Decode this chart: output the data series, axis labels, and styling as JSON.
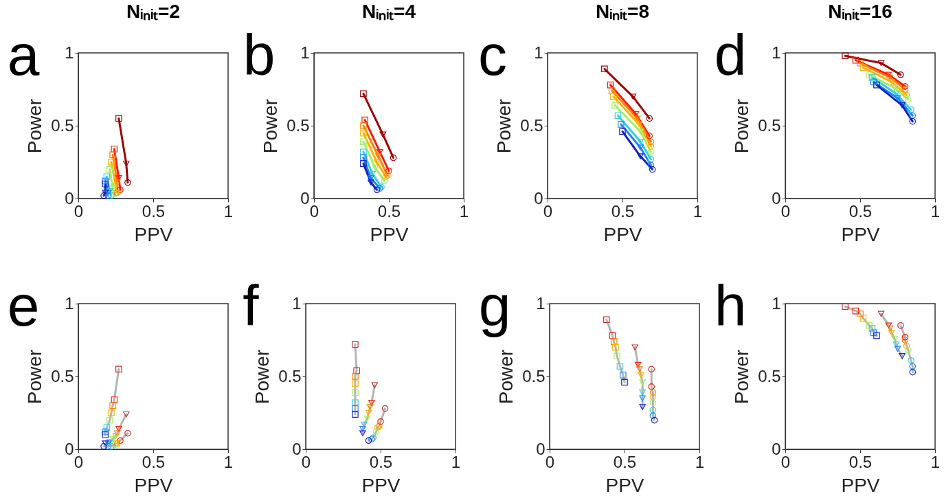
{
  "chart_data": [
    {
      "type": "line",
      "title": "Nᵢₙᵢₜ=2",
      "xlabel": "PPV",
      "ylabel": "Power",
      "xlim": [
        0,
        1
      ],
      "ylim": [
        0,
        1
      ],
      "xticks": [
        0,
        0.5,
        1
      ],
      "yticks": [
        0,
        0.5,
        1
      ],
      "grid": false,
      "annotations": [
        "a"
      ],
      "series": [
        {
          "color": "#a00000",
          "marker": "none",
          "x": [
            0.27,
            0.32,
            0.33
          ],
          "values": [
            0.55,
            0.24,
            0.11
          ]
        },
        {
          "color": "#ff1a00",
          "marker": "none",
          "x": [
            0.24,
            0.27,
            0.28
          ],
          "values": [
            0.34,
            0.14,
            0.06
          ]
        },
        {
          "color": "#ff8000",
          "marker": "none",
          "x": [
            0.23,
            0.26,
            0.26
          ],
          "values": [
            0.3,
            0.11,
            0.04
          ]
        },
        {
          "color": "#ffb000",
          "marker": "none",
          "x": [
            0.22,
            0.25,
            0.25
          ],
          "values": [
            0.25,
            0.09,
            0.04
          ]
        },
        {
          "color": "#a0f060",
          "marker": "none",
          "x": [
            0.21,
            0.23,
            0.24
          ],
          "values": [
            0.2,
            0.07,
            0.03
          ]
        },
        {
          "color": "#30d0e0",
          "marker": "none",
          "x": [
            0.19,
            0.21,
            0.22
          ],
          "values": [
            0.15,
            0.05,
            0.02
          ]
        },
        {
          "color": "#2080ff",
          "marker": "none",
          "x": [
            0.18,
            0.2,
            0.2
          ],
          "values": [
            0.12,
            0.04,
            0.02
          ]
        },
        {
          "color": "#1020c0",
          "marker": "none",
          "x": [
            0.18,
            0.18,
            0.17
          ],
          "values": [
            0.1,
            0.04,
            0.02
          ]
        },
        {
          "type": "scatter",
          "marker": "square",
          "colors": [
            "#a00000",
            "#ff1a00",
            "#ff8000",
            "#ffb000",
            "#a0f060",
            "#30d0e0",
            "#2080ff",
            "#1020c0"
          ],
          "x": [
            0.27,
            0.24,
            0.23,
            0.22,
            0.21,
            0.19,
            0.18,
            0.18
          ],
          "values": [
            0.55,
            0.34,
            0.3,
            0.25,
            0.2,
            0.15,
            0.12,
            0.1
          ]
        },
        {
          "type": "scatter",
          "marker": "triangle",
          "colors": [
            "#a00000",
            "#ff1a00",
            "#ff8000",
            "#ffb000",
            "#a0f060",
            "#30d0e0",
            "#2080ff",
            "#1020c0"
          ],
          "x": [
            0.32,
            0.27,
            0.26,
            0.25,
            0.23,
            0.21,
            0.2,
            0.18
          ],
          "values": [
            0.24,
            0.14,
            0.11,
            0.09,
            0.07,
            0.05,
            0.04,
            0.04
          ]
        },
        {
          "type": "scatter",
          "marker": "circle",
          "colors": [
            "#a00000",
            "#ff1a00",
            "#ff8000",
            "#ffb000",
            "#a0f060",
            "#30d0e0",
            "#2080ff",
            "#1020c0"
          ],
          "x": [
            0.33,
            0.28,
            0.26,
            0.25,
            0.24,
            0.22,
            0.2,
            0.17
          ],
          "values": [
            0.11,
            0.06,
            0.04,
            0.04,
            0.03,
            0.02,
            0.02,
            0.02
          ]
        }
      ]
    },
    {
      "type": "line",
      "title": "Nᵢₙᵢₜ=4",
      "xlabel": "PPV",
      "ylabel": "Power",
      "xlim": [
        0,
        1
      ],
      "ylim": [
        0,
        1
      ],
      "xticks": [
        0,
        0.5,
        1
      ],
      "yticks": [
        0,
        0.5,
        1
      ],
      "grid": false,
      "annotations": [
        "b"
      ],
      "series": [
        {
          "color": "#a00000",
          "marker": "none",
          "x": [
            0.33,
            0.46,
            0.53
          ],
          "values": [
            0.72,
            0.44,
            0.28
          ]
        },
        {
          "color": "#ff1a00",
          "marker": "none",
          "x": [
            0.34,
            0.44,
            0.5
          ],
          "values": [
            0.54,
            0.32,
            0.19
          ]
        },
        {
          "color": "#ff8000",
          "marker": "none",
          "x": [
            0.33,
            0.43,
            0.49
          ],
          "values": [
            0.5,
            0.29,
            0.16
          ]
        },
        {
          "color": "#ffb000",
          "marker": "none",
          "x": [
            0.33,
            0.42,
            0.48
          ],
          "values": [
            0.45,
            0.25,
            0.15
          ]
        },
        {
          "color": "#a0f060",
          "marker": "none",
          "x": [
            0.33,
            0.41,
            0.47
          ],
          "values": [
            0.39,
            0.21,
            0.12
          ]
        },
        {
          "color": "#30d0e0",
          "marker": "none",
          "x": [
            0.33,
            0.39,
            0.45
          ],
          "values": [
            0.32,
            0.17,
            0.08
          ]
        },
        {
          "color": "#2080ff",
          "marker": "none",
          "x": [
            0.33,
            0.38,
            0.44
          ],
          "values": [
            0.28,
            0.14,
            0.07
          ]
        },
        {
          "color": "#1020c0",
          "marker": "none",
          "x": [
            0.33,
            0.38,
            0.42
          ],
          "values": [
            0.24,
            0.11,
            0.06
          ]
        },
        {
          "type": "scatter",
          "marker": "square",
          "colors": [
            "#a00000",
            "#ff1a00",
            "#ff8000",
            "#ffb000",
            "#a0f060",
            "#30d0e0",
            "#2080ff",
            "#1020c0"
          ],
          "x": [
            0.33,
            0.34,
            0.33,
            0.33,
            0.33,
            0.33,
            0.33,
            0.33
          ],
          "values": [
            0.72,
            0.54,
            0.5,
            0.45,
            0.39,
            0.32,
            0.28,
            0.24
          ]
        },
        {
          "type": "scatter",
          "marker": "triangle",
          "colors": [
            "#a00000",
            "#ff1a00",
            "#ff8000",
            "#ffb000",
            "#a0f060",
            "#30d0e0",
            "#2080ff",
            "#1020c0"
          ],
          "x": [
            0.46,
            0.44,
            0.43,
            0.42,
            0.41,
            0.39,
            0.38,
            0.38
          ],
          "values": [
            0.44,
            0.32,
            0.29,
            0.25,
            0.21,
            0.17,
            0.14,
            0.11
          ]
        },
        {
          "type": "scatter",
          "marker": "circle",
          "colors": [
            "#a00000",
            "#ff1a00",
            "#ff8000",
            "#ffb000",
            "#a0f060",
            "#30d0e0",
            "#2080ff",
            "#1020c0"
          ],
          "x": [
            0.53,
            0.5,
            0.49,
            0.48,
            0.47,
            0.45,
            0.44,
            0.42
          ],
          "values": [
            0.28,
            0.19,
            0.16,
            0.15,
            0.12,
            0.08,
            0.07,
            0.06
          ]
        }
      ]
    },
    {
      "type": "line",
      "title": "Nᵢₙᵢₜ=8",
      "xlabel": "PPV",
      "ylabel": "Power",
      "xlim": [
        0,
        1
      ],
      "ylim": [
        0,
        1
      ],
      "xticks": [
        0,
        0.5,
        1
      ],
      "yticks": [
        0,
        0.5,
        1
      ],
      "grid": false,
      "annotations": [
        "c"
      ],
      "series": [
        {
          "color": "#a00000",
          "marker": "none",
          "x": [
            0.38,
            0.57,
            0.68
          ],
          "values": [
            0.89,
            0.7,
            0.55
          ]
        },
        {
          "color": "#ff1a00",
          "marker": "none",
          "x": [
            0.42,
            0.59,
            0.68
          ],
          "values": [
            0.78,
            0.58,
            0.43
          ]
        },
        {
          "color": "#ff8000",
          "marker": "none",
          "x": [
            0.43,
            0.6,
            0.69
          ],
          "values": [
            0.74,
            0.55,
            0.39
          ]
        },
        {
          "color": "#ffb000",
          "marker": "none",
          "x": [
            0.44,
            0.61,
            0.69
          ],
          "values": [
            0.7,
            0.51,
            0.36
          ]
        },
        {
          "color": "#a0f060",
          "marker": "none",
          "x": [
            0.45,
            0.62,
            0.69
          ],
          "values": [
            0.64,
            0.46,
            0.32
          ]
        },
        {
          "color": "#30d0e0",
          "marker": "none",
          "x": [
            0.47,
            0.62,
            0.69
          ],
          "values": [
            0.57,
            0.39,
            0.27
          ]
        },
        {
          "color": "#2080ff",
          "marker": "none",
          "x": [
            0.49,
            0.62,
            0.69
          ],
          "values": [
            0.51,
            0.35,
            0.23
          ]
        },
        {
          "color": "#1020c0",
          "marker": "none",
          "x": [
            0.5,
            0.62,
            0.7
          ],
          "values": [
            0.46,
            0.29,
            0.2
          ]
        },
        {
          "type": "scatter",
          "marker": "square",
          "colors": [
            "#a00000",
            "#ff1a00",
            "#ff8000",
            "#ffb000",
            "#a0f060",
            "#30d0e0",
            "#2080ff",
            "#1020c0"
          ],
          "x": [
            0.38,
            0.42,
            0.43,
            0.44,
            0.45,
            0.47,
            0.49,
            0.5
          ],
          "values": [
            0.89,
            0.78,
            0.74,
            0.7,
            0.64,
            0.57,
            0.51,
            0.46
          ]
        },
        {
          "type": "scatter",
          "marker": "triangle",
          "colors": [
            "#a00000",
            "#ff1a00",
            "#ff8000",
            "#ffb000",
            "#a0f060",
            "#30d0e0",
            "#2080ff",
            "#1020c0"
          ],
          "x": [
            0.57,
            0.59,
            0.6,
            0.61,
            0.62,
            0.62,
            0.62,
            0.62
          ],
          "values": [
            0.7,
            0.58,
            0.55,
            0.51,
            0.46,
            0.39,
            0.35,
            0.29
          ]
        },
        {
          "type": "scatter",
          "marker": "circle",
          "colors": [
            "#a00000",
            "#ff1a00",
            "#ff8000",
            "#ffb000",
            "#a0f060",
            "#30d0e0",
            "#2080ff",
            "#1020c0"
          ],
          "x": [
            0.68,
            0.68,
            0.69,
            0.69,
            0.69,
            0.69,
            0.69,
            0.7
          ],
          "values": [
            0.55,
            0.43,
            0.39,
            0.36,
            0.32,
            0.27,
            0.23,
            0.2
          ]
        }
      ]
    },
    {
      "type": "line",
      "title": "Nᵢₙᵢₜ=16",
      "xlabel": "PPV",
      "ylabel": "Power",
      "xlim": [
        0,
        1
      ],
      "ylim": [
        0,
        1
      ],
      "xticks": [
        0,
        0.5,
        1
      ],
      "yticks": [
        0,
        0.5,
        1
      ],
      "grid": false,
      "annotations": [
        "d"
      ],
      "series": [
        {
          "color": "#a00000",
          "marker": "none",
          "x": [
            0.4,
            0.64,
            0.77
          ],
          "values": [
            0.98,
            0.93,
            0.85
          ]
        },
        {
          "color": "#ff1a00",
          "marker": "none",
          "x": [
            0.47,
            0.69,
            0.8
          ],
          "values": [
            0.95,
            0.85,
            0.77
          ]
        },
        {
          "color": "#ff8000",
          "marker": "none",
          "x": [
            0.5,
            0.7,
            0.8
          ],
          "values": [
            0.93,
            0.83,
            0.75
          ]
        },
        {
          "color": "#ffb000",
          "marker": "none",
          "x": [
            0.52,
            0.71,
            0.81
          ],
          "values": [
            0.9,
            0.8,
            0.71
          ]
        },
        {
          "color": "#a0f060",
          "marker": "none",
          "x": [
            0.56,
            0.73,
            0.82
          ],
          "values": [
            0.85,
            0.76,
            0.68
          ]
        },
        {
          "color": "#30d0e0",
          "marker": "none",
          "x": [
            0.58,
            0.74,
            0.84
          ],
          "values": [
            0.83,
            0.72,
            0.61
          ]
        },
        {
          "color": "#2080ff",
          "marker": "none",
          "x": [
            0.59,
            0.75,
            0.85
          ],
          "values": [
            0.8,
            0.69,
            0.57
          ]
        },
        {
          "color": "#1020c0",
          "marker": "none",
          "x": [
            0.61,
            0.78,
            0.85
          ],
          "values": [
            0.78,
            0.64,
            0.53
          ]
        },
        {
          "type": "scatter",
          "marker": "square",
          "colors": [
            "#a00000",
            "#ff1a00",
            "#ff8000",
            "#ffb000",
            "#a0f060",
            "#30d0e0",
            "#2080ff",
            "#1020c0"
          ],
          "x": [
            0.4,
            0.47,
            0.5,
            0.52,
            0.56,
            0.58,
            0.59,
            0.61
          ],
          "values": [
            0.98,
            0.95,
            0.93,
            0.9,
            0.85,
            0.83,
            0.8,
            0.78
          ]
        },
        {
          "type": "scatter",
          "marker": "triangle",
          "colors": [
            "#a00000",
            "#ff1a00",
            "#ff8000",
            "#ffb000",
            "#a0f060",
            "#30d0e0",
            "#2080ff",
            "#1020c0"
          ],
          "x": [
            0.64,
            0.69,
            0.7,
            0.71,
            0.73,
            0.74,
            0.75,
            0.78
          ],
          "values": [
            0.93,
            0.85,
            0.83,
            0.8,
            0.76,
            0.72,
            0.69,
            0.64
          ]
        },
        {
          "type": "scatter",
          "marker": "circle",
          "colors": [
            "#a00000",
            "#ff1a00",
            "#ff8000",
            "#ffb000",
            "#a0f060",
            "#30d0e0",
            "#2080ff",
            "#1020c0"
          ],
          "x": [
            0.77,
            0.8,
            0.8,
            0.81,
            0.82,
            0.84,
            0.85,
            0.85
          ],
          "values": [
            0.85,
            0.77,
            0.75,
            0.71,
            0.68,
            0.61,
            0.57,
            0.53
          ]
        }
      ]
    },
    {
      "type": "line",
      "xlabel": "PPV",
      "ylabel": "Power",
      "xlim": [
        0,
        1
      ],
      "ylim": [
        0,
        1
      ],
      "xticks": [
        0,
        0.5,
        1
      ],
      "yticks": [
        0,
        0.5,
        1
      ],
      "grid": false,
      "annotations": [
        "e"
      ],
      "series": [
        {
          "color": "#b4b4b4",
          "marker": "square",
          "colors": [
            "#c03030",
            "#ff1a00",
            "#ff8000",
            "#ffb000",
            "#a0f060",
            "#30d0e0",
            "#2080ff",
            "#1020c0"
          ],
          "x": [
            0.27,
            0.24,
            0.23,
            0.22,
            0.21,
            0.19,
            0.18,
            0.18
          ],
          "values": [
            0.55,
            0.34,
            0.3,
            0.25,
            0.2,
            0.15,
            0.12,
            0.1
          ]
        },
        {
          "color": "#b4b4b4",
          "marker": "triangle",
          "colors": [
            "#c03030",
            "#ff1a00",
            "#ff8000",
            "#ffb000",
            "#a0f060",
            "#30d0e0",
            "#2080ff",
            "#1020c0"
          ],
          "x": [
            0.32,
            0.27,
            0.26,
            0.25,
            0.23,
            0.21,
            0.2,
            0.18
          ],
          "values": [
            0.24,
            0.14,
            0.11,
            0.09,
            0.07,
            0.05,
            0.04,
            0.04
          ]
        },
        {
          "color": "#b4b4b4",
          "marker": "circle",
          "colors": [
            "#c03030",
            "#ff1a00",
            "#ff8000",
            "#ffb000",
            "#a0f060",
            "#30d0e0",
            "#2080ff",
            "#1020c0"
          ],
          "x": [
            0.33,
            0.28,
            0.26,
            0.25,
            0.24,
            0.22,
            0.2,
            0.17
          ],
          "values": [
            0.11,
            0.06,
            0.04,
            0.04,
            0.03,
            0.02,
            0.02,
            0.02
          ]
        }
      ]
    },
    {
      "type": "line",
      "xlabel": "PPV",
      "ylabel": "Power",
      "xlim": [
        0,
        1
      ],
      "ylim": [
        0,
        1
      ],
      "xticks": [
        0,
        0.5,
        1
      ],
      "yticks": [
        0,
        0.5,
        1
      ],
      "grid": false,
      "annotations": [
        "f"
      ],
      "series": [
        {
          "color": "#b4b4b4",
          "marker": "square",
          "colors": [
            "#c03030",
            "#ff1a00",
            "#ff8000",
            "#ffb000",
            "#a0f060",
            "#30d0e0",
            "#2080ff",
            "#1020c0"
          ],
          "x": [
            0.33,
            0.34,
            0.33,
            0.33,
            0.33,
            0.33,
            0.33,
            0.33
          ],
          "values": [
            0.72,
            0.54,
            0.5,
            0.45,
            0.39,
            0.32,
            0.28,
            0.24
          ]
        },
        {
          "color": "#b4b4b4",
          "marker": "triangle",
          "colors": [
            "#c03030",
            "#ff1a00",
            "#ff8000",
            "#ffb000",
            "#a0f060",
            "#30d0e0",
            "#2080ff",
            "#1020c0"
          ],
          "x": [
            0.46,
            0.44,
            0.43,
            0.42,
            0.41,
            0.39,
            0.38,
            0.38
          ],
          "values": [
            0.44,
            0.32,
            0.29,
            0.25,
            0.21,
            0.17,
            0.14,
            0.11
          ]
        },
        {
          "color": "#b4b4b4",
          "marker": "circle",
          "colors": [
            "#c03030",
            "#ff1a00",
            "#ff8000",
            "#ffb000",
            "#a0f060",
            "#30d0e0",
            "#2080ff",
            "#1020c0"
          ],
          "x": [
            0.53,
            0.5,
            0.49,
            0.48,
            0.47,
            0.45,
            0.44,
            0.42
          ],
          "values": [
            0.28,
            0.19,
            0.16,
            0.15,
            0.12,
            0.08,
            0.07,
            0.06
          ]
        }
      ]
    },
    {
      "type": "line",
      "xlabel": "PPV",
      "ylabel": "Power",
      "xlim": [
        0,
        1
      ],
      "ylim": [
        0,
        1
      ],
      "xticks": [
        0,
        0.5,
        1
      ],
      "yticks": [
        0,
        0.5,
        1
      ],
      "grid": false,
      "annotations": [
        "g"
      ],
      "series": [
        {
          "color": "#b4b4b4",
          "marker": "square",
          "colors": [
            "#c03030",
            "#ff1a00",
            "#ff8000",
            "#ffb000",
            "#a0f060",
            "#30d0e0",
            "#2080ff",
            "#1020c0"
          ],
          "x": [
            0.38,
            0.42,
            0.43,
            0.44,
            0.45,
            0.47,
            0.49,
            0.5
          ],
          "values": [
            0.89,
            0.78,
            0.74,
            0.7,
            0.64,
            0.57,
            0.51,
            0.46
          ]
        },
        {
          "color": "#b4b4b4",
          "marker": "triangle",
          "colors": [
            "#c03030",
            "#ff1a00",
            "#ff8000",
            "#ffb000",
            "#a0f060",
            "#30d0e0",
            "#2080ff",
            "#1020c0"
          ],
          "x": [
            0.57,
            0.59,
            0.6,
            0.61,
            0.62,
            0.62,
            0.62,
            0.62
          ],
          "values": [
            0.7,
            0.58,
            0.55,
            0.51,
            0.46,
            0.39,
            0.35,
            0.29
          ]
        },
        {
          "color": "#b4b4b4",
          "marker": "circle",
          "colors": [
            "#c03030",
            "#ff1a00",
            "#ff8000",
            "#ffb000",
            "#a0f060",
            "#30d0e0",
            "#2080ff",
            "#1020c0"
          ],
          "x": [
            0.68,
            0.68,
            0.69,
            0.69,
            0.69,
            0.69,
            0.69,
            0.7
          ],
          "values": [
            0.55,
            0.43,
            0.39,
            0.36,
            0.32,
            0.27,
            0.23,
            0.2
          ]
        }
      ]
    },
    {
      "type": "line",
      "xlabel": "PPV",
      "ylabel": "Power",
      "xlim": [
        0,
        1
      ],
      "ylim": [
        0,
        1
      ],
      "xticks": [
        0,
        0.5,
        1
      ],
      "yticks": [
        0,
        0.5,
        1
      ],
      "grid": false,
      "annotations": [
        "h"
      ],
      "series": [
        {
          "color": "#b4b4b4",
          "marker": "square",
          "colors": [
            "#c03030",
            "#ff1a00",
            "#ff8000",
            "#ffb000",
            "#a0f060",
            "#30d0e0",
            "#2080ff",
            "#1020c0"
          ],
          "x": [
            0.4,
            0.47,
            0.5,
            0.52,
            0.56,
            0.58,
            0.59,
            0.61
          ],
          "values": [
            0.98,
            0.95,
            0.93,
            0.9,
            0.85,
            0.83,
            0.8,
            0.78
          ]
        },
        {
          "color": "#b4b4b4",
          "marker": "triangle",
          "colors": [
            "#c03030",
            "#ff1a00",
            "#ff8000",
            "#ffb000",
            "#a0f060",
            "#30d0e0",
            "#2080ff",
            "#1020c0"
          ],
          "x": [
            0.64,
            0.69,
            0.7,
            0.71,
            0.73,
            0.74,
            0.75,
            0.78
          ],
          "values": [
            0.93,
            0.85,
            0.83,
            0.8,
            0.76,
            0.72,
            0.69,
            0.64
          ]
        },
        {
          "color": "#b4b4b4",
          "marker": "circle",
          "colors": [
            "#c03030",
            "#ff1a00",
            "#ff8000",
            "#ffb000",
            "#a0f060",
            "#30d0e0",
            "#2080ff",
            "#1020c0"
          ],
          "x": [
            0.77,
            0.8,
            0.8,
            0.81,
            0.82,
            0.84,
            0.85,
            0.85
          ],
          "values": [
            0.85,
            0.77,
            0.75,
            0.71,
            0.68,
            0.61,
            0.57,
            0.53
          ]
        }
      ]
    }
  ]
}
